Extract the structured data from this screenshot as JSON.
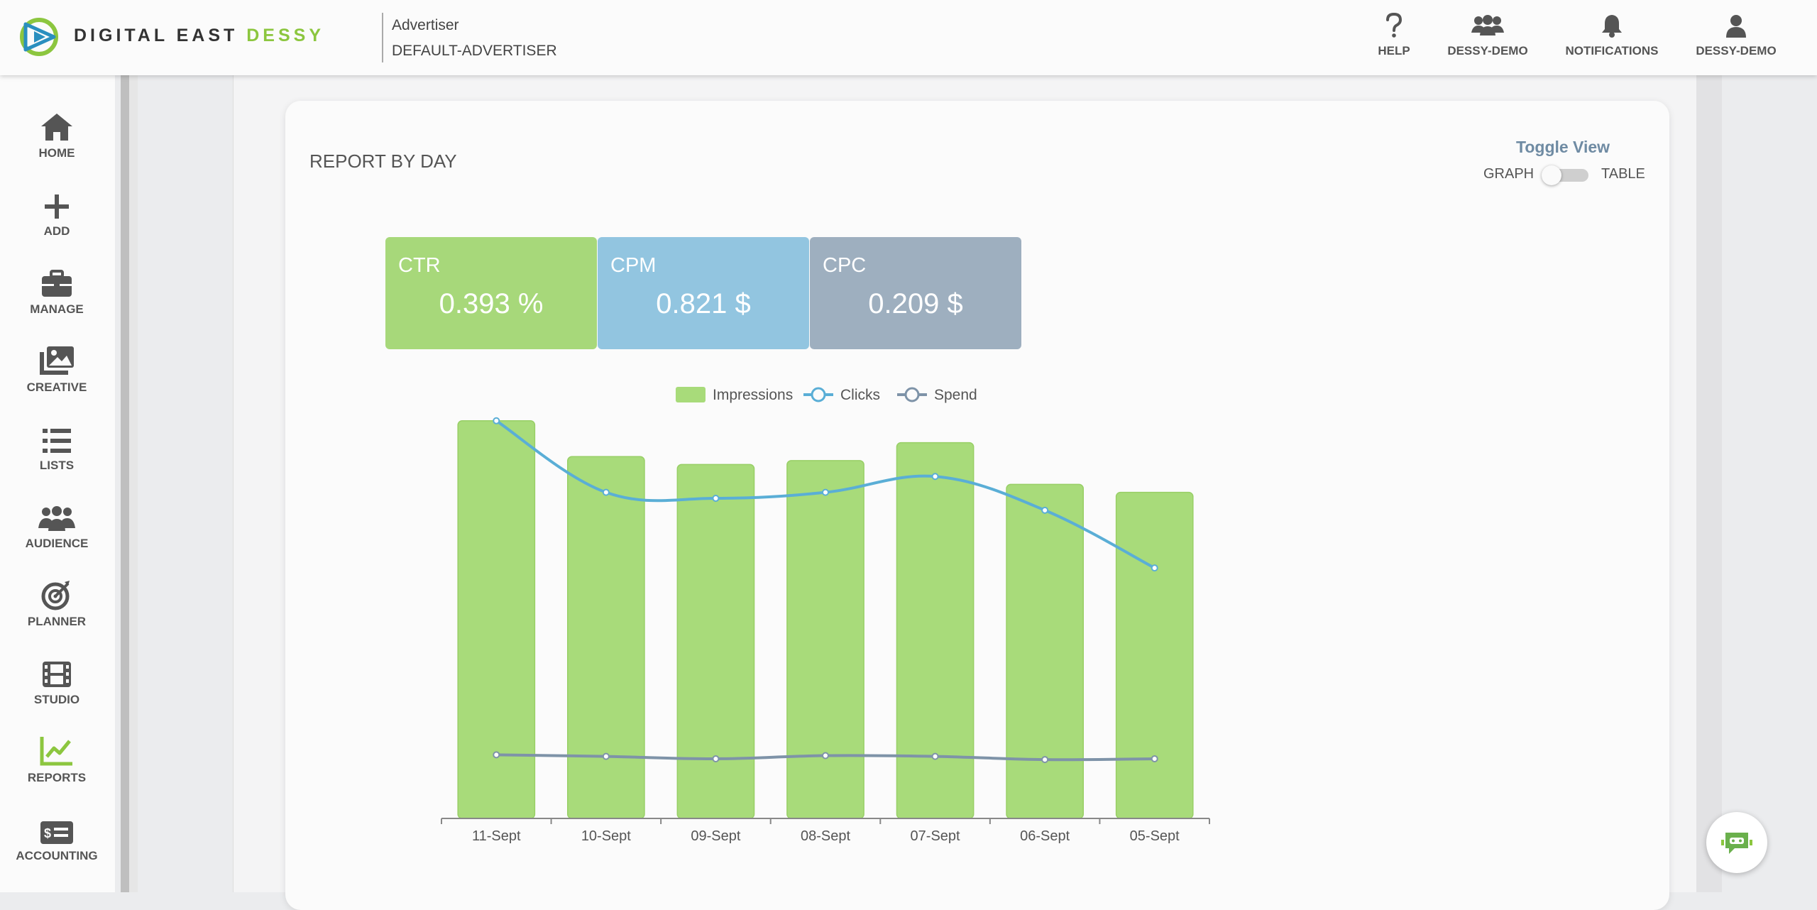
{
  "brand": {
    "name_part1": "DIGITAL EAST ",
    "name_part2": "DESSY",
    "accent_color": "#8cc63f"
  },
  "advertiser": {
    "label": "Advertiser",
    "value": "DEFAULT-ADVERTISER"
  },
  "topnav": [
    {
      "label": "HELP",
      "icon": "question-icon"
    },
    {
      "label": "DESSY-DEMO",
      "icon": "users-icon"
    },
    {
      "label": "NOTIFICATIONS",
      "icon": "bell-icon"
    },
    {
      "label": "DESSY-DEMO",
      "icon": "user-icon"
    }
  ],
  "sidebar": [
    {
      "label": "HOME",
      "icon": "home-icon"
    },
    {
      "label": "ADD",
      "icon": "plus-icon"
    },
    {
      "label": "MANAGE",
      "icon": "briefcase-icon"
    },
    {
      "label": "CREATIVE",
      "icon": "images-icon"
    },
    {
      "label": "LISTS",
      "icon": "list-icon"
    },
    {
      "label": "AUDIENCE",
      "icon": "audience-icon"
    },
    {
      "label": "PLANNER",
      "icon": "target-icon"
    },
    {
      "label": "STUDIO",
      "icon": "film-icon"
    },
    {
      "label": "REPORTS",
      "icon": "chart-line-icon",
      "active": true
    },
    {
      "label": "ACCOUNTING",
      "icon": "money-icon"
    }
  ],
  "report": {
    "title": "REPORT BY DAY",
    "toggle_title": "Toggle View",
    "toggle_left": "GRAPH",
    "toggle_right": "TABLE",
    "toggle_state": "GRAPH"
  },
  "metrics": [
    {
      "name": "CTR",
      "value": "0.393 %",
      "color": "#a7d87a"
    },
    {
      "name": "CPM",
      "value": "0.821 $",
      "color": "#92c5e0"
    },
    {
      "name": "CPC",
      "value": "0.209 $",
      "color": "#9eafbf"
    }
  ],
  "chart_data": {
    "type": "bar",
    "categories": [
      "11-Sept",
      "10-Sept",
      "09-Sept",
      "08-Sept",
      "07-Sept",
      "06-Sept",
      "05-Sept"
    ],
    "series": [
      {
        "name": "Impressions",
        "type": "bar",
        "color": "#a8db7a",
        "values": [
          100,
          91,
          89,
          90,
          94.5,
          84,
          82
        ]
      },
      {
        "name": "Clicks",
        "type": "line",
        "color": "#5aaed6",
        "values": [
          100,
          82,
          80.5,
          82,
          86,
          77.5,
          63
        ]
      },
      {
        "name": "Spend",
        "type": "line",
        "color": "#7e93a8",
        "values": [
          16,
          15.6,
          15,
          15.8,
          15.6,
          14.8,
          15
        ]
      }
    ],
    "ylim": [
      0,
      103
    ],
    "legend": "top",
    "grid": false
  }
}
